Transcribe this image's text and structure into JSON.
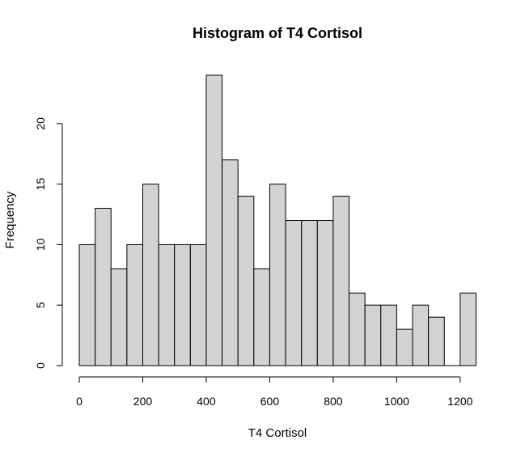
{
  "chart_data": {
    "type": "bar",
    "title": "Histogram of T4 Cortisol",
    "xlabel": "T4 Cortisol",
    "ylabel": "Frequency",
    "bin_width": 50,
    "bin_edges_start": 0,
    "values": [
      10,
      13,
      8,
      10,
      15,
      10,
      10,
      10,
      24,
      17,
      14,
      8,
      15,
      12,
      12,
      12,
      14,
      6,
      5,
      5,
      3,
      5,
      4,
      0,
      6
    ],
    "xlim": [
      0,
      1250
    ],
    "ylim": [
      0,
      24
    ],
    "x_ticks": [
      0,
      200,
      400,
      600,
      800,
      1000,
      1200
    ],
    "y_ticks": [
      0,
      5,
      10,
      15,
      20
    ],
    "bar_fill": "#d3d3d3",
    "bar_stroke": "#000000",
    "grid": false
  }
}
